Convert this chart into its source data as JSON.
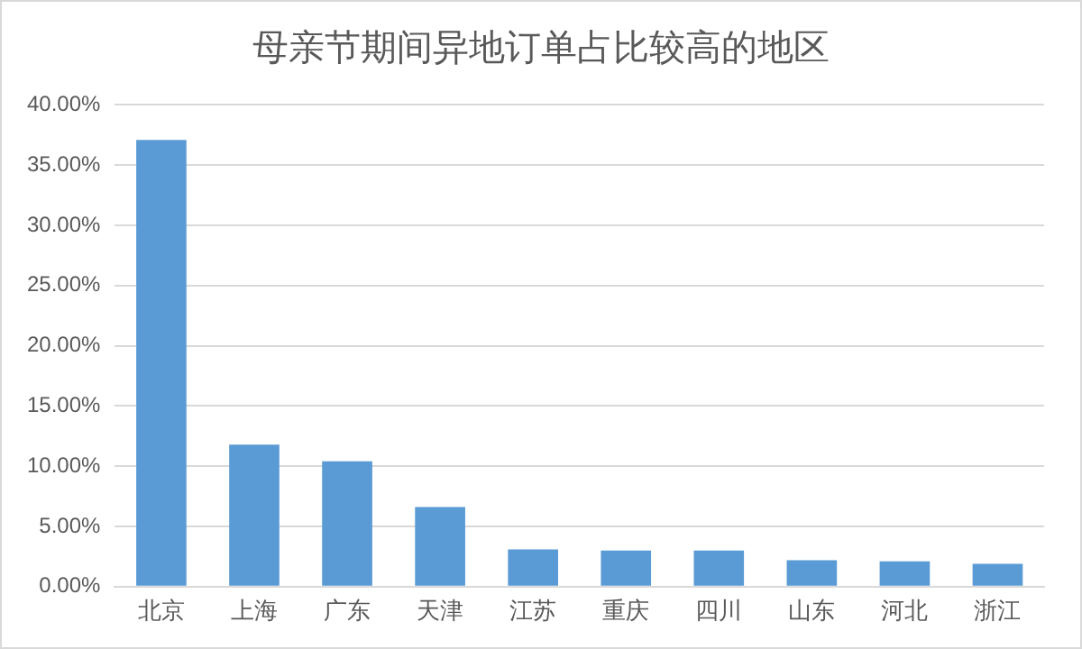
{
  "chart_data": {
    "type": "bar",
    "title": "母亲节期间异地订单占比较高的地区",
    "categories": [
      "北京",
      "上海",
      "广东",
      "天津",
      "江苏",
      "重庆",
      "四川",
      "山东",
      "河北",
      "浙江"
    ],
    "values": [
      37.1,
      11.8,
      10.4,
      6.6,
      3.1,
      3.0,
      3.0,
      2.2,
      2.1,
      1.9
    ],
    "color": "#5b9bd5",
    "ylim": [
      0,
      40
    ],
    "yticks": [
      {
        "value": 0,
        "label": "0.00%"
      },
      {
        "value": 5,
        "label": "5.00%"
      },
      {
        "value": 10,
        "label": "10.00%"
      },
      {
        "value": 15,
        "label": "15.00%"
      },
      {
        "value": 20,
        "label": "20.00%"
      },
      {
        "value": 25,
        "label": "25.00%"
      },
      {
        "value": 30,
        "label": "30.00%"
      },
      {
        "value": 35,
        "label": "35.00%"
      },
      {
        "value": 40,
        "label": "40.00%"
      }
    ],
    "grid": "y",
    "legend": false
  }
}
